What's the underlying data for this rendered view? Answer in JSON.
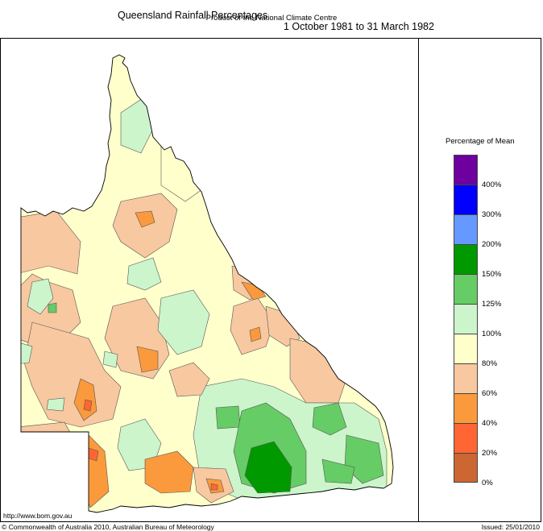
{
  "header": {
    "title": "Queensland Rainfall Percentages",
    "period": "1 October 1981 to 31 March 1982",
    "subtitle": "Product of the National Climate Centre"
  },
  "legend": {
    "title": "Percentage of Mean",
    "items": [
      {
        "color": "#6e00a0"
      },
      {
        "color": "#0000ff"
      },
      {
        "color": "#6699ff"
      },
      {
        "color": "#009900"
      },
      {
        "color": "#66cc66"
      },
      {
        "color": "#ccf5cc"
      },
      {
        "color": "#ffffcc"
      },
      {
        "color": "#f8c8a0"
      },
      {
        "color": "#fa9a3c"
      },
      {
        "color": "#ff6633"
      },
      {
        "color": "#cc6633"
      }
    ],
    "labels": [
      "400%",
      "300%",
      "200%",
      "150%",
      "125%",
      "100%",
      "80%",
      "60%",
      "40%",
      "20%",
      "0%"
    ]
  },
  "footer": {
    "url": "http://www.bom.gov.au",
    "copyright": "© Commonwealth of Australia 2010, Australian Bureau of Meteorology",
    "issued": "Issued: 25/01/2010"
  }
}
